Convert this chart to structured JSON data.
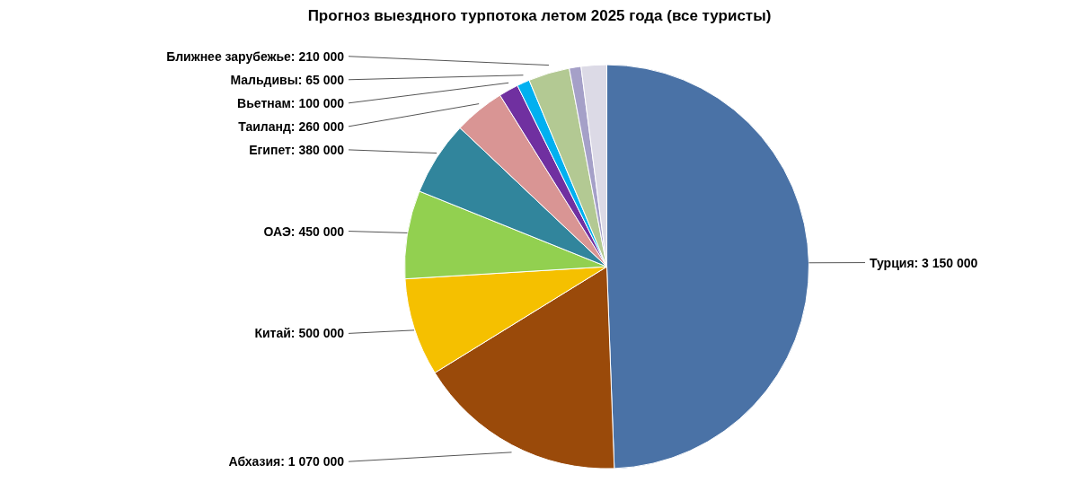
{
  "chart_data": {
    "type": "pie",
    "title": "Прогноз выездного турпотока летом 2025 года (все туристы)",
    "categories": [
      "Турция",
      "Абхазия",
      "Китай",
      "ОАЭ",
      "Египет",
      "Таиланд",
      "Вьетнам",
      "Мальдивы",
      "Ближнее зарубежье",
      null,
      null
    ],
    "values": [
      3150000,
      1070000,
      500000,
      450000,
      380000,
      260000,
      100000,
      65000,
      210000,
      60000,
      130000
    ],
    "value_labels": [
      "3 150 000",
      "1 070 000",
      "500 000",
      "450 000",
      "380 000",
      "260 000",
      "100 000",
      "65 000",
      "210 000",
      null,
      null
    ],
    "colors": [
      "#4a72a6",
      "#9a4a0a",
      "#f5c000",
      "#92d050",
      "#31859c",
      "#d99594",
      "#7030a0",
      "#00b0f0",
      "#b3c993",
      "#a5a0c8",
      "#dcdae6"
    ]
  }
}
